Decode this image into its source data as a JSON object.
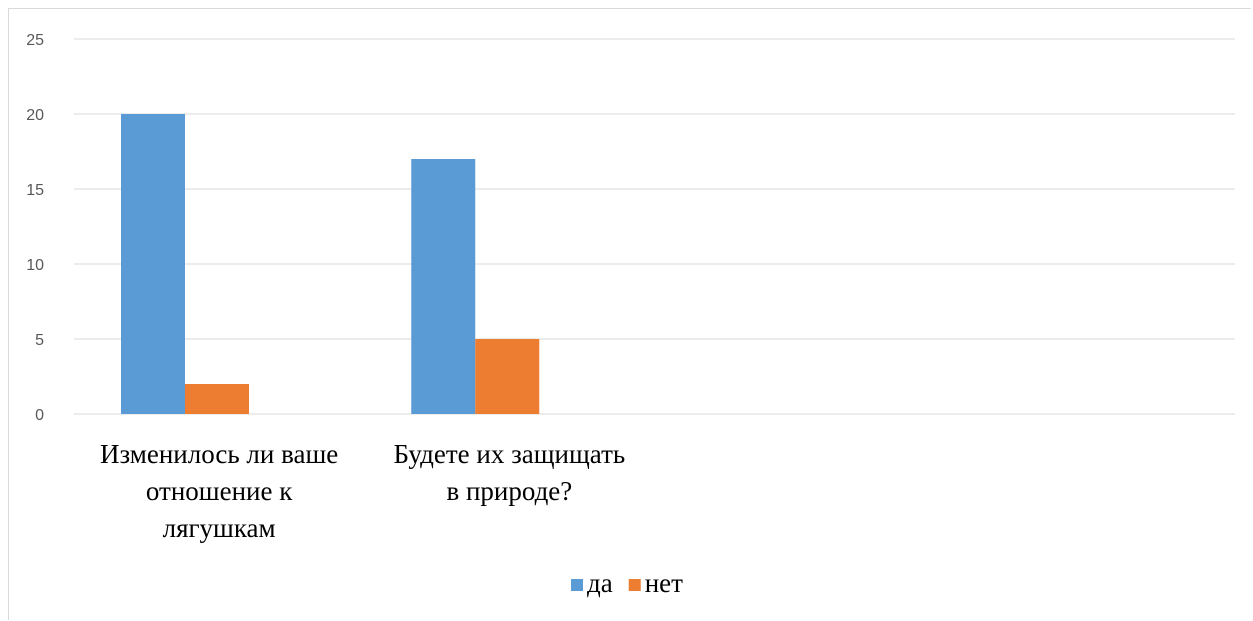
{
  "chart_data": {
    "type": "bar",
    "categories": [
      [
        "Изменилось ли ваше",
        "отношение к",
        "лягушкам"
      ],
      [
        "Будете их защищать",
        "в природе?"
      ],
      [
        ""
      ],
      [
        ""
      ]
    ],
    "series": [
      {
        "name": "да",
        "color": "#5b9bd5",
        "values": [
          20,
          17,
          null,
          null
        ]
      },
      {
        "name": "нет",
        "color": "#ed7d31",
        "values": [
          2,
          5,
          null,
          null
        ]
      }
    ],
    "yticks": [
      0,
      5,
      10,
      15,
      20,
      25
    ],
    "ylim": [
      0,
      25
    ],
    "grid": true,
    "legend_position": "bottom",
    "title": "",
    "xlabel": "",
    "ylabel": ""
  }
}
